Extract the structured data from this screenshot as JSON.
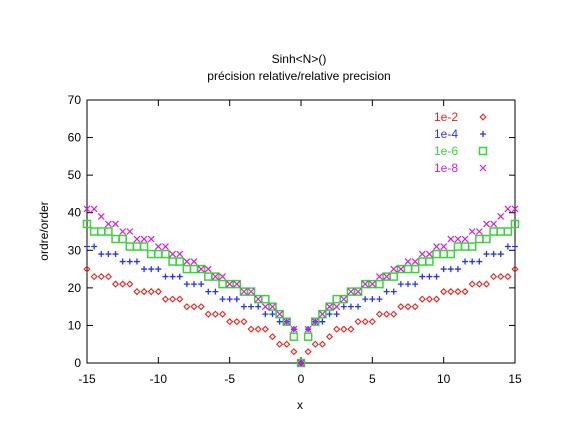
{
  "chart_data": {
    "type": "scatter",
    "title": "Sinh<N>()",
    "subtitle": "précision relative/relative precision",
    "xlabel": "x",
    "ylabel": "ordre/order",
    "xlim": [
      -15,
      15
    ],
    "ylim": [
      0,
      70
    ],
    "xticks": [
      "-15",
      "-10",
      "-5",
      "0",
      "5",
      "10",
      "15"
    ],
    "yticks": [
      "0",
      "10",
      "20",
      "30",
      "40",
      "50",
      "60",
      "70"
    ],
    "grid": false,
    "legend_position": "top-right",
    "x": [
      -15,
      -14.5,
      -14,
      -13.5,
      -13,
      -12.5,
      -12,
      -11.5,
      -11,
      -10.5,
      -10,
      -9.5,
      -9,
      -8.5,
      -8,
      -7.5,
      -7,
      -6.5,
      -6,
      -5.5,
      -5,
      -4.5,
      -4,
      -3.5,
      -3,
      -2.5,
      -2,
      -1.5,
      -1,
      -0.5,
      0,
      0.5,
      1,
      1.5,
      2,
      2.5,
      3,
      3.5,
      4,
      4.5,
      5,
      5.5,
      6,
      6.5,
      7,
      7.5,
      8,
      8.5,
      9,
      9.5,
      10,
      10.5,
      11,
      11.5,
      12,
      12.5,
      13,
      13.5,
      14,
      14.5,
      15
    ],
    "series": [
      {
        "name": "1e-2",
        "marker": "diamond",
        "color": "#e8231f",
        "values": [
          25,
          23,
          23,
          23,
          21,
          21,
          21,
          19,
          19,
          19,
          19,
          17,
          17,
          17,
          15,
          15,
          15,
          13,
          13,
          13,
          11,
          11,
          11,
          9,
          9,
          9,
          7,
          5,
          5,
          3,
          0,
          3,
          5,
          5,
          7,
          9,
          9,
          9,
          11,
          11,
          11,
          13,
          13,
          13,
          15,
          15,
          15,
          17,
          17,
          17,
          19,
          19,
          19,
          19,
          21,
          21,
          21,
          23,
          23,
          23,
          25
        ]
      },
      {
        "name": "1e-4",
        "marker": "plus",
        "color": "#2a34e8",
        "values": [
          31,
          31,
          29,
          29,
          29,
          27,
          27,
          27,
          25,
          25,
          25,
          23,
          23,
          23,
          21,
          21,
          21,
          19,
          19,
          17,
          17,
          17,
          15,
          15,
          15,
          13,
          13,
          11,
          11,
          9,
          0,
          9,
          11,
          11,
          13,
          13,
          15,
          15,
          15,
          17,
          17,
          17,
          19,
          19,
          21,
          21,
          21,
          23,
          23,
          23,
          25,
          25,
          25,
          27,
          27,
          27,
          29,
          29,
          29,
          31,
          31
        ]
      },
      {
        "name": "1e-6",
        "marker": "square",
        "color": "#3dd13d",
        "values": [
          37,
          35,
          35,
          35,
          33,
          33,
          31,
          31,
          31,
          29,
          29,
          29,
          27,
          27,
          25,
          25,
          25,
          23,
          23,
          21,
          21,
          21,
          19,
          19,
          17,
          17,
          15,
          13,
          11,
          7,
          0,
          7,
          11,
          13,
          15,
          17,
          17,
          19,
          19,
          21,
          21,
          21,
          23,
          23,
          25,
          25,
          25,
          27,
          27,
          29,
          29,
          29,
          31,
          31,
          31,
          33,
          33,
          35,
          35,
          35,
          37
        ]
      },
      {
        "name": "1e-8",
        "marker": "cross",
        "color": "#d420d4",
        "values": [
          41,
          41,
          39,
          37,
          37,
          35,
          35,
          33,
          33,
          33,
          31,
          31,
          29,
          29,
          27,
          27,
          25,
          25,
          23,
          23,
          21,
          21,
          19,
          19,
          17,
          15,
          15,
          13,
          11,
          9,
          0,
          9,
          11,
          13,
          15,
          15,
          17,
          19,
          19,
          21,
          21,
          23,
          23,
          25,
          25,
          27,
          27,
          29,
          29,
          31,
          31,
          33,
          33,
          33,
          35,
          35,
          37,
          37,
          39,
          41,
          41
        ]
      }
    ]
  }
}
